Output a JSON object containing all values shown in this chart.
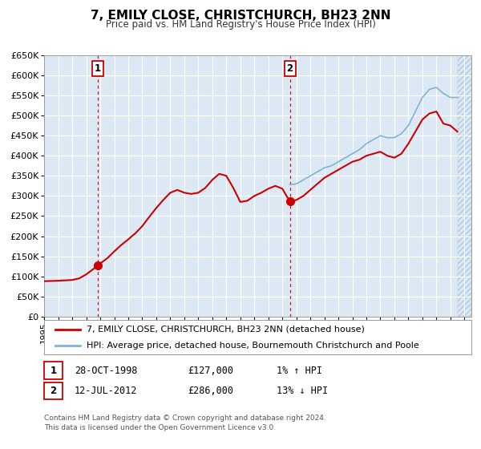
{
  "title": "7, EMILY CLOSE, CHRISTCHURCH, BH23 2NN",
  "subtitle": "Price paid vs. HM Land Registry's House Price Index (HPI)",
  "ylim": [
    0,
    650000
  ],
  "xlim_start": 1995.0,
  "xlim_end": 2025.5,
  "yticks": [
    0,
    50000,
    100000,
    150000,
    200000,
    250000,
    300000,
    350000,
    400000,
    450000,
    500000,
    550000,
    600000,
    650000
  ],
  "ytick_labels": [
    "£0",
    "£50K",
    "£100K",
    "£150K",
    "£200K",
    "£250K",
    "£300K",
    "£350K",
    "£400K",
    "£450K",
    "£500K",
    "£550K",
    "£600K",
    "£650K"
  ],
  "xticks": [
    1995,
    1996,
    1997,
    1998,
    1999,
    2000,
    2001,
    2002,
    2003,
    2004,
    2005,
    2006,
    2007,
    2008,
    2009,
    2010,
    2011,
    2012,
    2013,
    2014,
    2015,
    2016,
    2017,
    2018,
    2019,
    2020,
    2021,
    2022,
    2023,
    2024,
    2025
  ],
  "background_color": "#dce9f5",
  "hatch_color": "#c8d8e8",
  "red_line_color": "#cc0000",
  "blue_line_color": "#7fb3d3",
  "marker_color": "#cc0000",
  "vline_color": "#cc0000",
  "sale1_x": 1998.83,
  "sale1_y": 127000,
  "sale1_label": "1",
  "sale2_x": 2012.54,
  "sale2_y": 286000,
  "sale2_label": "2",
  "data_end_x": 2024.5,
  "legend1": "7, EMILY CLOSE, CHRISTCHURCH, BH23 2NN (detached house)",
  "legend2": "HPI: Average price, detached house, Bournemouth Christchurch and Poole",
  "table_row1_num": "1",
  "table_row1_date": "28-OCT-1998",
  "table_row1_price": "£127,000",
  "table_row1_hpi": "1% ↑ HPI",
  "table_row2_num": "2",
  "table_row2_date": "12-JUL-2012",
  "table_row2_price": "£286,000",
  "table_row2_hpi": "13% ↓ HPI",
  "footnote1": "Contains HM Land Registry data © Crown copyright and database right 2024.",
  "footnote2": "This data is licensed under the Open Government Licence v3.0.",
  "hpi_red_data_x": [
    1995.0,
    1995.5,
    1996.0,
    1996.5,
    1997.0,
    1997.5,
    1998.0,
    1998.5,
    1998.83,
    1999.0,
    1999.5,
    2000.0,
    2000.5,
    2001.0,
    2001.5,
    2002.0,
    2002.5,
    2003.0,
    2003.5,
    2004.0,
    2004.5,
    2005.0,
    2005.5,
    2006.0,
    2006.5,
    2007.0,
    2007.5,
    2008.0,
    2008.5,
    2009.0,
    2009.5,
    2010.0,
    2010.5,
    2011.0,
    2011.5,
    2012.0,
    2012.54,
    2013.0,
    2013.5,
    2014.0,
    2014.5,
    2015.0,
    2015.5,
    2016.0,
    2016.5,
    2017.0,
    2017.5,
    2018.0,
    2018.5,
    2019.0,
    2019.5,
    2020.0,
    2020.5,
    2021.0,
    2021.5,
    2022.0,
    2022.5,
    2023.0,
    2023.5,
    2024.0,
    2024.5
  ],
  "hpi_red_data_y": [
    88000,
    88500,
    89000,
    90000,
    91000,
    95000,
    105000,
    118000,
    127000,
    132000,
    145000,
    162000,
    178000,
    192000,
    207000,
    225000,
    248000,
    270000,
    290000,
    308000,
    315000,
    308000,
    305000,
    308000,
    320000,
    340000,
    355000,
    350000,
    320000,
    285000,
    288000,
    300000,
    308000,
    318000,
    325000,
    318000,
    286000,
    290000,
    300000,
    315000,
    330000,
    345000,
    355000,
    365000,
    375000,
    385000,
    390000,
    400000,
    405000,
    410000,
    400000,
    395000,
    405000,
    430000,
    460000,
    490000,
    505000,
    510000,
    480000,
    475000,
    460000
  ],
  "hpi_blue_data_x": [
    2012.54,
    2013.0,
    2013.5,
    2014.0,
    2014.5,
    2015.0,
    2015.5,
    2016.0,
    2016.5,
    2017.0,
    2017.5,
    2018.0,
    2018.5,
    2019.0,
    2019.5,
    2020.0,
    2020.5,
    2021.0,
    2021.5,
    2022.0,
    2022.5,
    2023.0,
    2023.5,
    2024.0,
    2024.5
  ],
  "hpi_blue_data_y": [
    328000,
    330000,
    340000,
    350000,
    360000,
    370000,
    375000,
    385000,
    395000,
    405000,
    415000,
    430000,
    440000,
    450000,
    445000,
    445000,
    455000,
    475000,
    510000,
    545000,
    565000,
    570000,
    555000,
    545000,
    545000
  ]
}
